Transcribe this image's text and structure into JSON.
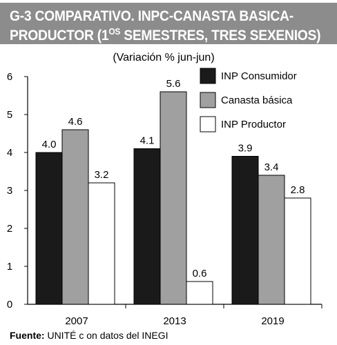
{
  "title_line1": "G-3 COMPARATIVO. INPC-CANASTA BASICA-",
  "title_line2": "PRODUCTOR (1OS SEMESTRES, TRES SEXENIOS)",
  "source_label": "Fuente:",
  "source_text": "UNITÉ c on datos del INEGI",
  "colors": {
    "title_bg": "#8c8c8c",
    "consumidor": "#1a1a1a",
    "canasta": "#a0a0a0",
    "productor": "#ffffff"
  },
  "chart_data": {
    "type": "bar",
    "subtitle": "(Variación % jun-jun)",
    "categories": [
      "2007",
      "2013",
      "2019"
    ],
    "series": [
      {
        "name": "INP Consumidor",
        "values": [
          4.0,
          4.1,
          3.9
        ],
        "labels": [
          "4.0",
          "4.1",
          "3.9"
        ],
        "color": "#1a1a1a"
      },
      {
        "name": "Canasta básica",
        "values": [
          4.6,
          5.6,
          3.4
        ],
        "labels": [
          "4.6",
          "5.6",
          "3.4"
        ],
        "color": "#a0a0a0"
      },
      {
        "name": "INP Productor",
        "values": [
          3.2,
          0.6,
          2.8
        ],
        "labels": [
          "3.2",
          "0.6",
          "2.8"
        ],
        "color": "#ffffff"
      }
    ],
    "ylim": [
      0,
      6
    ],
    "yticks": [
      "0",
      "1",
      "2",
      "3",
      "4",
      "5",
      "6"
    ],
    "legend_position": "top-right",
    "grid": false
  }
}
